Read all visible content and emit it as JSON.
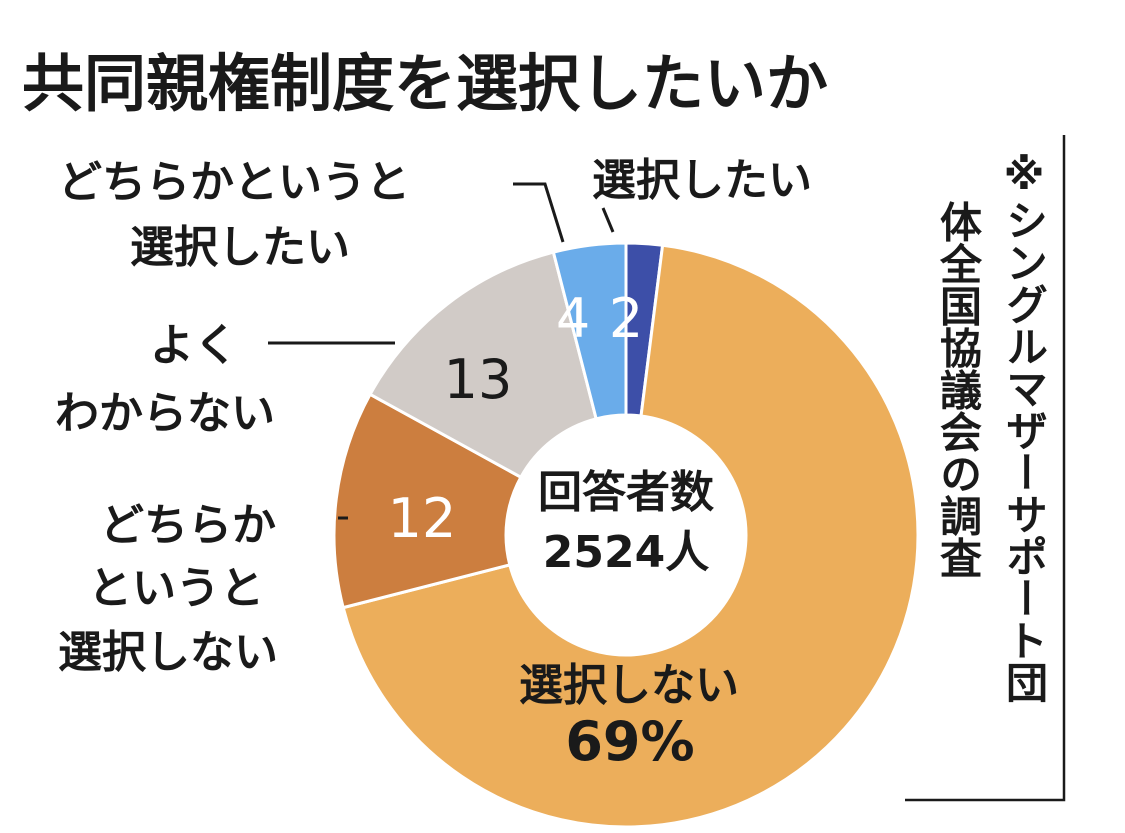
{
  "chart_data": {
    "type": "pie",
    "title": "共同親権制度を選択したいか",
    "center_label": [
      "回答者数",
      "2524人"
    ],
    "note": "※シングルマザーサポート団体全国協議会の調査",
    "unit": "%",
    "slices": [
      {
        "label": "選択したい",
        "value": 2,
        "value_text": "2",
        "color": "#3d4fa8",
        "value_color": "#ffffff"
      },
      {
        "label": "選択しない",
        "value": 69,
        "value_text": "69%",
        "color": "#ecae5b",
        "value_color": "#1a1a1a"
      },
      {
        "label": "どちらかというと選択しない",
        "value": 12,
        "value_text": "12",
        "color": "#cc7e3f",
        "value_color": "#ffffff"
      },
      {
        "label": "よくわからない",
        "value": 13,
        "value_text": "13",
        "color": "#d1cbc7",
        "value_color": "#1a1a1a"
      },
      {
        "label": "どちらかというと選択したい",
        "value": 4,
        "value_text": "4",
        "color": "#6aacea",
        "value_color": "#ffffff"
      }
    ]
  }
}
